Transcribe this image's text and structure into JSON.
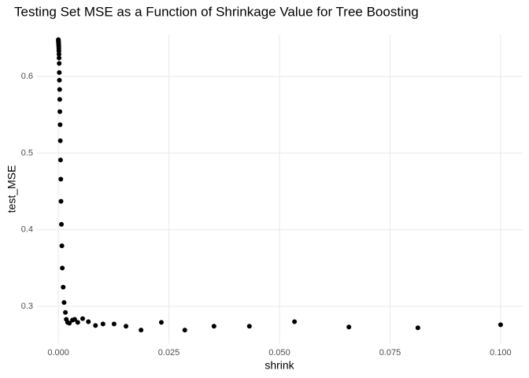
{
  "chart_data": {
    "type": "scatter",
    "title": "Testing Set MSE as a Function of Shrinkage Value for Tree Boosting",
    "x_label": "shrink",
    "y_label": "test_MSE",
    "x": [
      1e-05,
      2e-05,
      3e-05,
      4e-05,
      5e-05,
      6e-05,
      8e-05,
      0.0001,
      0.00012,
      0.00013,
      0.00015,
      0.00017,
      0.0002,
      0.00022,
      0.00025,
      0.0003,
      0.00032,
      0.00035,
      0.0004,
      0.00045,
      0.0005,
      0.00056,
      0.0006,
      0.0007,
      0.0008,
      0.0009,
      0.0011,
      0.0013,
      0.0016,
      0.0018,
      0.0021,
      0.0025,
      0.0032,
      0.0037,
      0.0044,
      0.0055,
      0.0068,
      0.0084,
      0.0101,
      0.0126,
      0.0153,
      0.0187,
      0.0233,
      0.0286,
      0.0352,
      0.0432,
      0.0534,
      0.0657,
      0.0813,
      0.1
    ],
    "values": [
      0.648,
      0.647,
      0.646,
      0.645,
      0.644,
      0.643,
      0.641,
      0.639,
      0.636,
      0.633,
      0.629,
      0.624,
      0.617,
      0.605,
      0.595,
      0.583,
      0.57,
      0.554,
      0.537,
      0.516,
      0.491,
      0.466,
      0.437,
      0.407,
      0.379,
      0.35,
      0.325,
      0.305,
      0.292,
      0.283,
      0.279,
      0.278,
      0.282,
      0.283,
      0.279,
      0.284,
      0.28,
      0.275,
      0.277,
      0.277,
      0.274,
      0.269,
      0.279,
      0.269,
      0.274,
      0.274,
      0.28,
      0.273,
      0.272,
      0.276
    ],
    "color": "#000000",
    "xlim": [
      -0.005,
      0.105
    ],
    "ylim": [
      0.2517,
      0.6545
    ],
    "xticks": [
      {
        "value": 0,
        "label": "0.000"
      },
      0.025,
      {
        "value": 0.05,
        "label": "0.050"
      },
      0.075,
      {
        "value": 0.1,
        "label": "0.100"
      }
    ],
    "yticks": [
      0.3,
      0.4,
      0.5,
      0.6
    ],
    "grid": true
  }
}
